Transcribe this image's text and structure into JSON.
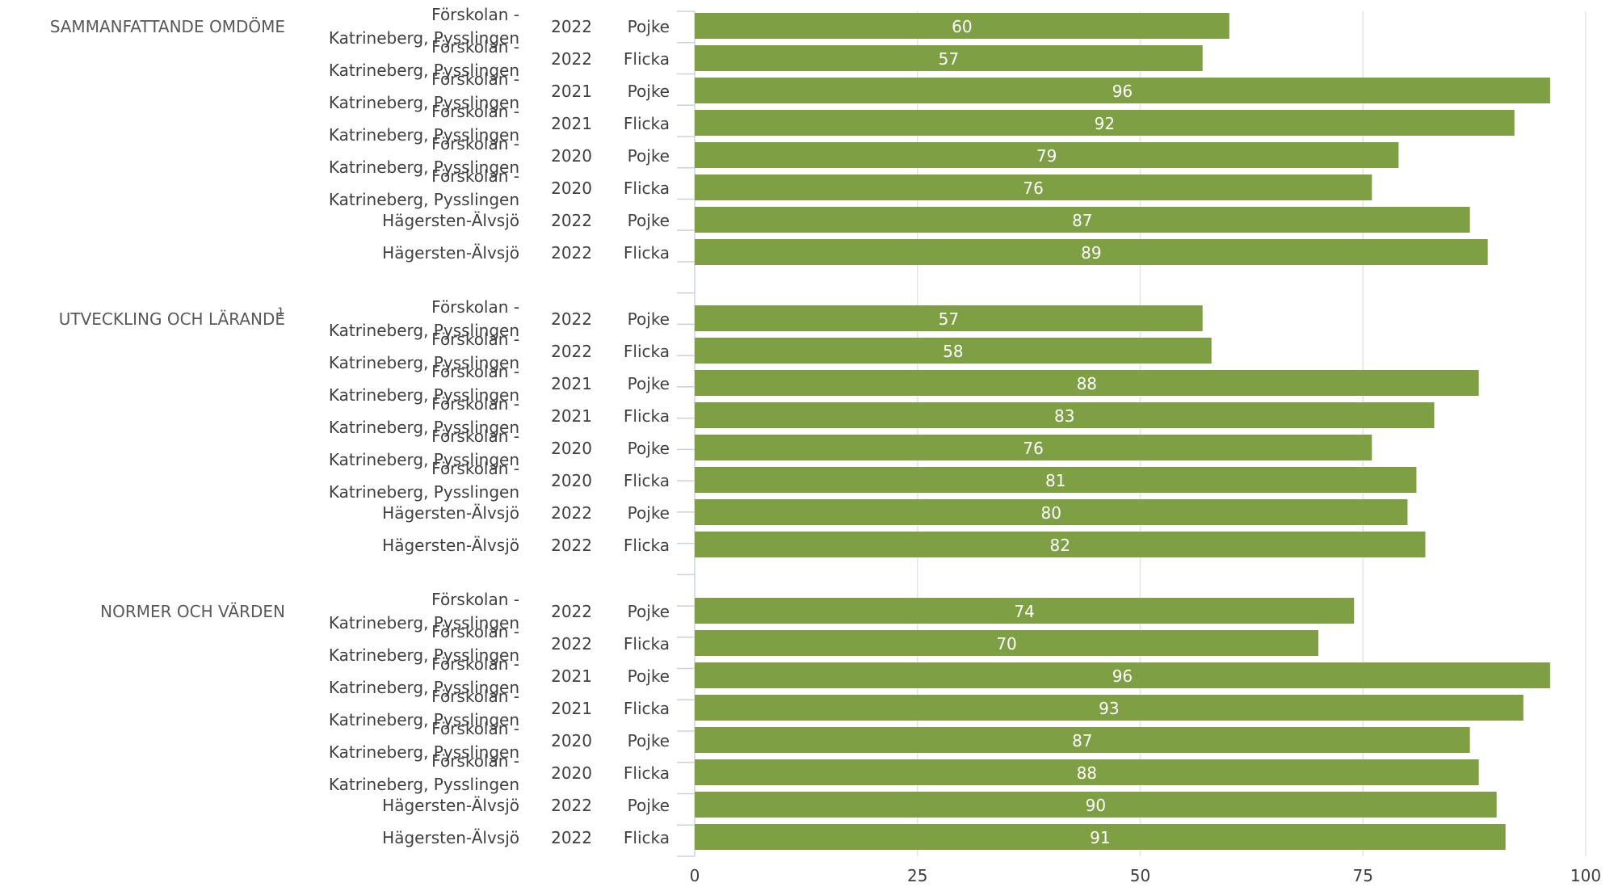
{
  "chart_data": {
    "type": "bar",
    "orientation": "horizontal",
    "bar_color": "#7f9f45",
    "xlim": [
      0,
      100
    ],
    "x_ticks": [
      "0",
      "25",
      "50",
      "75",
      "100"
    ],
    "grid": true,
    "groups": [
      {
        "label": "SAMMANFATTANDE OMDÖME",
        "footnote": "",
        "rows": [
          {
            "unit": "Förskolan - Katrineberg, Pysslingen",
            "year": "2022",
            "gender": "Pojke",
            "value": 60
          },
          {
            "unit": "Förskolan - Katrineberg, Pysslingen",
            "year": "2022",
            "gender": "Flicka",
            "value": 57
          },
          {
            "unit": "Förskolan - Katrineberg, Pysslingen",
            "year": "2021",
            "gender": "Pojke",
            "value": 96
          },
          {
            "unit": "Förskolan - Katrineberg, Pysslingen",
            "year": "2021",
            "gender": "Flicka",
            "value": 92
          },
          {
            "unit": "Förskolan - Katrineberg, Pysslingen",
            "year": "2020",
            "gender": "Pojke",
            "value": 79
          },
          {
            "unit": "Förskolan - Katrineberg, Pysslingen",
            "year": "2020",
            "gender": "Flicka",
            "value": 76
          },
          {
            "unit": "Hägersten-Älvsjö",
            "year": "2022",
            "gender": "Pojke",
            "value": 87
          },
          {
            "unit": "Hägersten-Älvsjö",
            "year": "2022",
            "gender": "Flicka",
            "value": 89
          }
        ]
      },
      {
        "label": "UTVECKLING OCH LÄRANDE",
        "footnote": "1",
        "rows": [
          {
            "unit": "Förskolan - Katrineberg, Pysslingen",
            "year": "2022",
            "gender": "Pojke",
            "value": 57
          },
          {
            "unit": "Förskolan - Katrineberg, Pysslingen",
            "year": "2022",
            "gender": "Flicka",
            "value": 58
          },
          {
            "unit": "Förskolan - Katrineberg, Pysslingen",
            "year": "2021",
            "gender": "Pojke",
            "value": 88
          },
          {
            "unit": "Förskolan - Katrineberg, Pysslingen",
            "year": "2021",
            "gender": "Flicka",
            "value": 83
          },
          {
            "unit": "Förskolan - Katrineberg, Pysslingen",
            "year": "2020",
            "gender": "Pojke",
            "value": 76
          },
          {
            "unit": "Förskolan - Katrineberg, Pysslingen",
            "year": "2020",
            "gender": "Flicka",
            "value": 81
          },
          {
            "unit": "Hägersten-Älvsjö",
            "year": "2022",
            "gender": "Pojke",
            "value": 80
          },
          {
            "unit": "Hägersten-Älvsjö",
            "year": "2022",
            "gender": "Flicka",
            "value": 82
          }
        ]
      },
      {
        "label": "NORMER OCH VÄRDEN",
        "footnote": "",
        "rows": [
          {
            "unit": "Förskolan - Katrineberg, Pysslingen",
            "year": "2022",
            "gender": "Pojke",
            "value": 74
          },
          {
            "unit": "Förskolan - Katrineberg, Pysslingen",
            "year": "2022",
            "gender": "Flicka",
            "value": 70
          },
          {
            "unit": "Förskolan - Katrineberg, Pysslingen",
            "year": "2021",
            "gender": "Pojke",
            "value": 96
          },
          {
            "unit": "Förskolan - Katrineberg, Pysslingen",
            "year": "2021",
            "gender": "Flicka",
            "value": 93
          },
          {
            "unit": "Förskolan - Katrineberg, Pysslingen",
            "year": "2020",
            "gender": "Pojke",
            "value": 87
          },
          {
            "unit": "Förskolan - Katrineberg, Pysslingen",
            "year": "2020",
            "gender": "Flicka",
            "value": 88
          },
          {
            "unit": "Hägersten-Älvsjö",
            "year": "2022",
            "gender": "Pojke",
            "value": 90
          },
          {
            "unit": "Hägersten-Älvsjö",
            "year": "2022",
            "gender": "Flicka",
            "value": 91
          }
        ]
      }
    ]
  }
}
